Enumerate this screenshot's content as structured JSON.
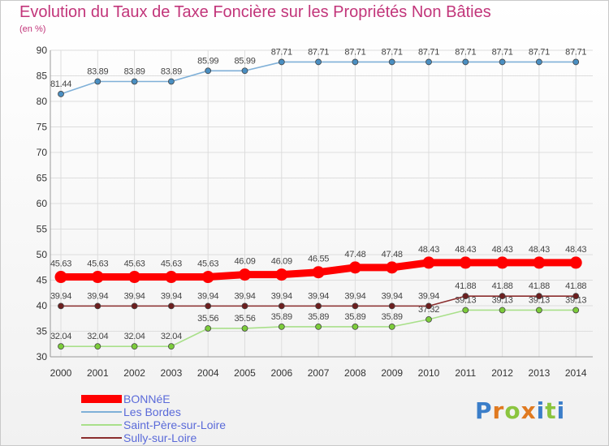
{
  "title": "Evolution du Taux de Taxe Foncière sur les Propriétés Non Bâties",
  "unit_label": "(en %)",
  "brand": "Proxiti",
  "colors": {
    "title": "#c2357a",
    "legend_text": "#5a6ad9",
    "grid": "#dddddd",
    "axis_text": "#333333"
  },
  "chart_data": {
    "type": "line",
    "title": "Evolution du Taux de Taxe Foncière sur les Propriétés Non Bâties",
    "ylabel": "(en %)",
    "xlabel": "",
    "ylim": [
      30,
      90
    ],
    "yticks": [
      30,
      35,
      40,
      45,
      50,
      55,
      60,
      65,
      70,
      75,
      80,
      85,
      90
    ],
    "grid": true,
    "legend_position": "bottom-left",
    "categories": [
      "2000",
      "2001",
      "2002",
      "2003",
      "2004",
      "2005",
      "2006",
      "2007",
      "2008",
      "2009",
      "2010",
      "2011",
      "2012",
      "2013",
      "2014"
    ],
    "series": [
      {
        "name": "BONNéE",
        "color": "#ff0000",
        "marker_color": "#ff0000",
        "thick": true,
        "values": [
          45.63,
          45.63,
          45.63,
          45.63,
          45.63,
          46.09,
          46.09,
          46.55,
          47.48,
          47.48,
          48.43,
          48.43,
          48.43,
          48.43,
          48.43
        ],
        "labels": [
          "45.63",
          "45.63",
          "45.63",
          "45.63",
          "45.63",
          "46.09",
          "46.09",
          "46.55",
          "47.48",
          "47.48",
          "48.43",
          "48.43",
          "48.43",
          "48.43",
          "48.43"
        ]
      },
      {
        "name": "Les Bordes",
        "color": "#7fb0d8",
        "marker_color": "#4a8fc2",
        "thick": false,
        "values": [
          81.44,
          83.89,
          83.89,
          83.89,
          85.99,
          85.99,
          87.71,
          87.71,
          87.71,
          87.71,
          87.71,
          87.71,
          87.71,
          87.71,
          87.71
        ],
        "labels": [
          "81.44",
          "83.89",
          "83.89",
          "83.89",
          "85.99",
          "85.99",
          "87.71",
          "87.71",
          "87.71",
          "87.71",
          "87.71",
          "87.71",
          "87.71",
          "87.71",
          "87.71"
        ]
      },
      {
        "name": "Saint-Père-sur-Loire",
        "color": "#a9e08a",
        "marker_color": "#7ccc3a",
        "thick": false,
        "values": [
          32.04,
          32.04,
          32.04,
          32.04,
          35.56,
          35.56,
          35.89,
          35.89,
          35.89,
          35.89,
          37.32,
          39.13,
          39.13,
          39.13,
          39.13
        ],
        "labels": [
          "32.04",
          "32.04",
          "32.04",
          "32.04",
          "35.56",
          "35.56",
          "35.89",
          "35.89",
          "35.89",
          "35.89",
          "37.32",
          "39.13",
          "39.13",
          "39.13",
          "39.13"
        ]
      },
      {
        "name": "Sully-sur-Loire",
        "color": "#8b2e2e",
        "marker_color": "#6d1f1f",
        "thick": false,
        "values": [
          39.94,
          39.94,
          39.94,
          39.94,
          39.94,
          39.94,
          39.94,
          39.94,
          39.94,
          39.94,
          39.94,
          41.88,
          41.88,
          41.88,
          41.88
        ],
        "labels": [
          "39.94",
          "39.94",
          "39.94",
          "39.94",
          "39.94",
          "39.94",
          "39.94",
          "39.94",
          "39.94",
          "39.94",
          "39.94",
          "41.88",
          "41.88",
          "41.88",
          "41.88"
        ]
      }
    ]
  }
}
